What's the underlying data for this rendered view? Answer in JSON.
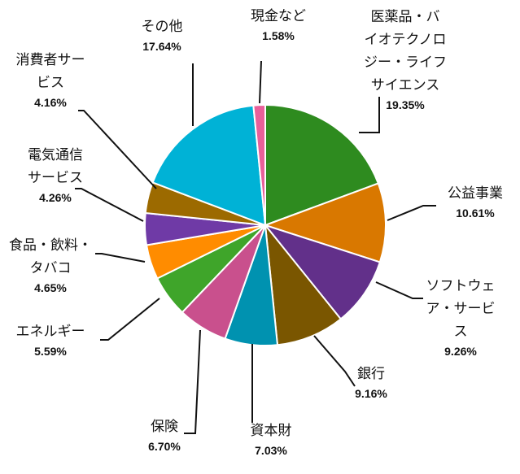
{
  "chart_data": {
    "type": "pie",
    "title": "",
    "start_angle_deg": 0,
    "direction": "clockwise",
    "slices": [
      {
        "label_lines": [
          "医薬品・バ",
          "イオテクノロ",
          "ジー・ライフ",
          "サイエンス"
        ],
        "value": 19.35,
        "value_label": "19.35%",
        "color": "#2e8b1f"
      },
      {
        "label_lines": [
          "公益事業"
        ],
        "value": 10.61,
        "value_label": "10.61%",
        "color": "#d97800"
      },
      {
        "label_lines": [
          "ソフトウェ",
          "ア・サービ",
          "ス"
        ],
        "value": 9.26,
        "value_label": "9.26%",
        "color": "#62308a"
      },
      {
        "label_lines": [
          "銀行"
        ],
        "value": 9.16,
        "value_label": "9.16%",
        "color": "#7a5600"
      },
      {
        "label_lines": [
          "資本財"
        ],
        "value": 7.03,
        "value_label": "7.03%",
        "color": "#0092b0"
      },
      {
        "label_lines": [
          "保険"
        ],
        "value": 6.7,
        "value_label": "6.70%",
        "color": "#c9508d"
      },
      {
        "label_lines": [
          "エネルギー"
        ],
        "value": 5.59,
        "value_label": "5.59%",
        "color": "#3fa52a"
      },
      {
        "label_lines": [
          "食品・飲料・",
          "タバコ"
        ],
        "value": 4.65,
        "value_label": "4.65%",
        "color": "#ff8c00"
      },
      {
        "label_lines": [
          "電気通信",
          "サービス"
        ],
        "value": 4.26,
        "value_label": "4.26%",
        "color": "#6f3aa6"
      },
      {
        "label_lines": [
          "消費者サー",
          "ビス"
        ],
        "value": 4.16,
        "value_label": "4.16%",
        "color": "#9c6a00"
      },
      {
        "label_lines": [
          "その他"
        ],
        "value": 17.64,
        "value_label": "17.64%",
        "color": "#00b2d6"
      },
      {
        "label_lines": [
          "現金など"
        ],
        "value": 1.58,
        "value_label": "1.58%",
        "color": "#e8609a"
      }
    ]
  }
}
